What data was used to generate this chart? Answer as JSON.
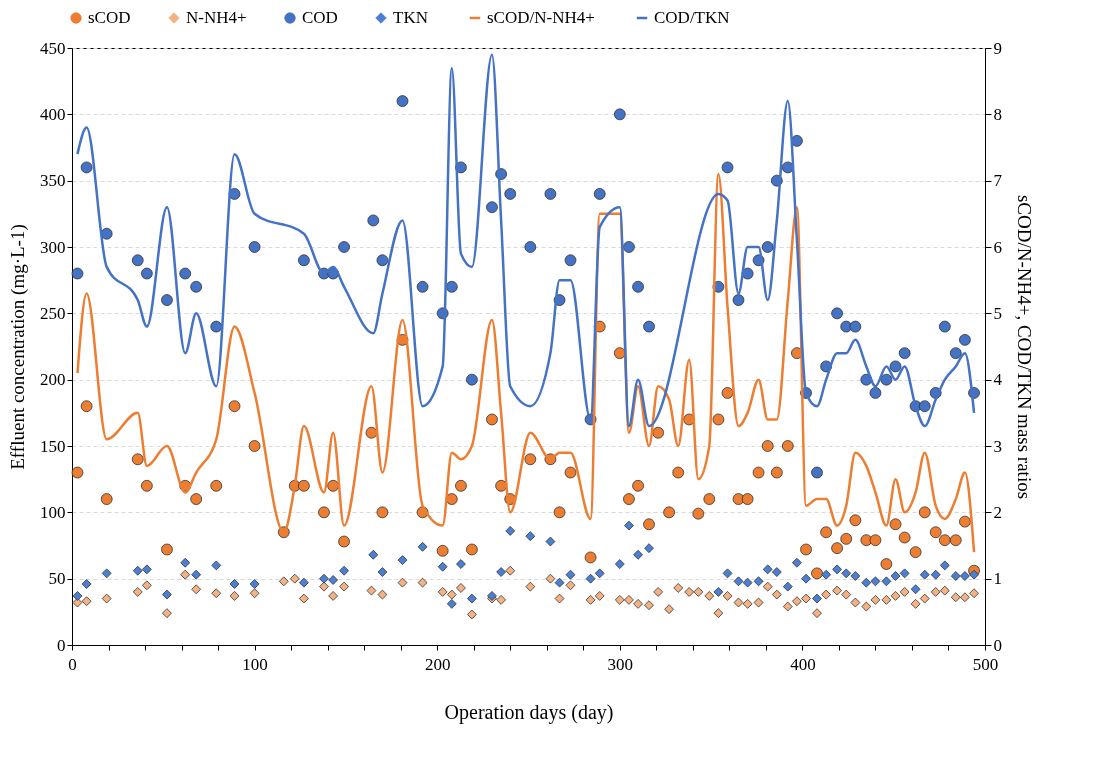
{
  "chart_data": {
    "type": "scatter",
    "xlabel": "Operation days (day)",
    "ylabel": "Effluent concentration (mg·L-1)",
    "y2label": "sCOD/N-NH4+, COD/TKN mass ratios",
    "xlim": [
      0,
      500
    ],
    "xticks": [
      0,
      {
        "value": 20,
        "label": null
      },
      {
        "value": 40,
        "label": null
      },
      {
        "value": 60,
        "label": null
      },
      {
        "value": 80,
        "label": null
      },
      100,
      {
        "value": 120,
        "label": null
      },
      {
        "value": 140,
        "label": null
      },
      {
        "value": 160,
        "label": null
      },
      {
        "value": 180,
        "label": null
      },
      200,
      {
        "value": 220,
        "label": null
      },
      {
        "value": 240,
        "label": null
      },
      {
        "value": 260,
        "label": null
      },
      {
        "value": 280,
        "label": null
      },
      300,
      {
        "value": 320,
        "label": null
      },
      {
        "value": 340,
        "label": null
      },
      {
        "value": 360,
        "label": null
      },
      {
        "value": 380,
        "label": null
      },
      400,
      {
        "value": 420,
        "label": null
      },
      {
        "value": 440,
        "label": null
      },
      {
        "value": 460,
        "label": null
      },
      {
        "value": 480,
        "label": null
      },
      500
    ],
    "ylim": [
      0,
      450
    ],
    "yticks": [
      0,
      50,
      100,
      150,
      200,
      250,
      300,
      350,
      400,
      450
    ],
    "y2lim": [
      0,
      9
    ],
    "y2ticks": [
      0,
      1,
      2,
      3,
      4,
      5,
      6,
      7,
      8,
      9
    ],
    "grid": "y",
    "legend": "top",
    "series": [
      {
        "name": "sCOD",
        "type": "scatter",
        "marker": "circle",
        "color": "#ed7d31",
        "x": [
          3,
          8,
          19,
          36,
          41,
          52,
          62,
          68,
          79,
          89,
          100,
          116,
          122,
          127,
          138,
          143,
          149,
          164,
          170,
          181,
          192,
          203,
          208,
          213,
          219,
          230,
          235,
          240,
          251,
          262,
          267,
          273,
          284,
          289,
          300,
          305,
          310,
          316,
          321,
          327,
          332,
          338,
          343,
          349,
          354,
          359,
          365,
          370,
          376,
          381,
          386,
          392,
          397,
          402,
          408,
          413,
          419,
          424,
          429,
          435,
          440,
          446,
          451,
          456,
          462,
          467,
          473,
          478,
          484,
          489,
          494
        ],
        "values": [
          130,
          180,
          110,
          140,
          120,
          72,
          120,
          110,
          120,
          180,
          150,
          85,
          120,
          120,
          100,
          120,
          78,
          160,
          100,
          230,
          100,
          71,
          110,
          120,
          72,
          170,
          120,
          110,
          140,
          140,
          100,
          130,
          66,
          240,
          220,
          110,
          120,
          91,
          160,
          100,
          130,
          170,
          99,
          110,
          170,
          190,
          110,
          110,
          130,
          150,
          130,
          150,
          220,
          72,
          54,
          85,
          73,
          80,
          94,
          79,
          79,
          61,
          91,
          81,
          70,
          100,
          85,
          79,
          79,
          93,
          56
        ]
      },
      {
        "name": "N-NH4+",
        "type": "scatter",
        "marker": "diamond",
        "color": "#f4b183",
        "x": [
          3,
          8,
          19,
          36,
          41,
          52,
          62,
          68,
          79,
          89,
          100,
          116,
          122,
          127,
          138,
          143,
          149,
          164,
          170,
          181,
          192,
          203,
          208,
          213,
          219,
          230,
          235,
          240,
          251,
          262,
          267,
          273,
          284,
          289,
          300,
          305,
          310,
          316,
          321,
          327,
          332,
          338,
          343,
          349,
          354,
          359,
          365,
          370,
          376,
          381,
          386,
          392,
          397,
          402,
          408,
          413,
          419,
          424,
          429,
          435,
          440,
          446,
          451,
          456,
          462,
          467,
          473,
          478,
          484,
          489,
          494
        ],
        "values": [
          32,
          33,
          35,
          40,
          45,
          24,
          53,
          42,
          39,
          37,
          39,
          48,
          50,
          35,
          44,
          37,
          44,
          41,
          38,
          47,
          47,
          40,
          38,
          43,
          23,
          35,
          34,
          56,
          44,
          50,
          35,
          45,
          34,
          37,
          34,
          34,
          31,
          30,
          40,
          27,
          43,
          40,
          40,
          37,
          24,
          37,
          32,
          31,
          32,
          44,
          38,
          29,
          33,
          35,
          24,
          38,
          41,
          38,
          32,
          29,
          34,
          34,
          37,
          40,
          31,
          35,
          40,
          41,
          36,
          36,
          39
        ]
      },
      {
        "name": "COD",
        "type": "scatter",
        "marker": "circle",
        "color": "#4472c4",
        "x": [
          3,
          8,
          19,
          36,
          41,
          52,
          62,
          68,
          79,
          89,
          100,
          127,
          138,
          143,
          149,
          165,
          170,
          181,
          192,
          203,
          208,
          213,
          219,
          230,
          235,
          240,
          251,
          262,
          267,
          273,
          284,
          289,
          300,
          305,
          310,
          316,
          354,
          359,
          365,
          370,
          376,
          381,
          386,
          392,
          397,
          402,
          408,
          413,
          419,
          424,
          429,
          435,
          440,
          446,
          451,
          456,
          462,
          467,
          473,
          478,
          484,
          489,
          494
        ],
        "values": [
          280,
          360,
          310,
          290,
          280,
          260,
          280,
          270,
          240,
          340,
          300,
          290,
          280,
          280,
          300,
          320,
          290,
          410,
          270,
          250,
          270,
          360,
          200,
          330,
          355,
          340,
          300,
          340,
          260,
          290,
          170,
          340,
          400,
          300,
          270,
          240,
          270,
          360,
          260,
          280,
          290,
          300,
          350,
          360,
          380,
          190,
          130,
          210,
          250,
          240,
          240,
          200,
          190,
          200,
          210,
          220,
          180,
          180,
          190,
          240,
          220,
          230,
          190
        ]
      },
      {
        "name": "TKN",
        "type": "scatter",
        "marker": "diamond",
        "color": "#4a7fd4",
        "x": [
          3,
          8,
          19,
          36,
          41,
          52,
          62,
          68,
          79,
          89,
          100,
          127,
          138,
          143,
          149,
          165,
          170,
          181,
          192,
          203,
          208,
          213,
          219,
          230,
          235,
          240,
          251,
          262,
          267,
          273,
          284,
          289,
          300,
          305,
          310,
          316,
          354,
          359,
          365,
          370,
          376,
          381,
          386,
          392,
          397,
          402,
          408,
          413,
          419,
          424,
          429,
          435,
          440,
          446,
          451,
          456,
          462,
          467,
          473,
          478,
          484,
          489,
          494
        ],
        "values": [
          37,
          46,
          54,
          56,
          57,
          38,
          62,
          53,
          60,
          46,
          46,
          47,
          50,
          49,
          56,
          68,
          55,
          64,
          74,
          59,
          31,
          61,
          35,
          37,
          55,
          86,
          82,
          78,
          47,
          53,
          50,
          54,
          61,
          90,
          68,
          73,
          40,
          54,
          48,
          47,
          48,
          57,
          55,
          44,
          62,
          50,
          35,
          53,
          57,
          54,
          52,
          47,
          48,
          48,
          52,
          54,
          42,
          53,
          53,
          60,
          52,
          52,
          53
        ]
      },
      {
        "name": "sCOD/N-NH4+",
        "type": "line",
        "axis": "y2",
        "color": "#ed7d31",
        "x": [
          3,
          8,
          19,
          36,
          41,
          52,
          62,
          68,
          79,
          89,
          100,
          116,
          122,
          127,
          138,
          143,
          149,
          164,
          170,
          181,
          192,
          203,
          208,
          213,
          219,
          230,
          235,
          240,
          251,
          262,
          267,
          273,
          284,
          289,
          300,
          305,
          310,
          316,
          321,
          327,
          332,
          338,
          343,
          349,
          354,
          359,
          365,
          370,
          376,
          381,
          386,
          392,
          397,
          402,
          408,
          413,
          419,
          424,
          429,
          435,
          440,
          446,
          451,
          456,
          462,
          467,
          473,
          478,
          484,
          489,
          494
        ],
        "values": [
          4.1,
          5.3,
          3.1,
          3.5,
          2.7,
          3.0,
          2.3,
          2.6,
          3.1,
          4.8,
          3.8,
          1.7,
          2.4,
          3.3,
          2.3,
          3.2,
          1.8,
          3.9,
          2.6,
          4.9,
          2.1,
          1.8,
          2.9,
          2.8,
          3.0,
          4.9,
          3.5,
          2.0,
          3.2,
          2.8,
          2.9,
          2.9,
          1.9,
          6.5,
          6.5,
          3.2,
          3.9,
          3.0,
          3.9,
          3.7,
          3.0,
          4.3,
          2.5,
          3.0,
          7.1,
          5.1,
          3.3,
          3.5,
          4.0,
          3.4,
          3.4,
          5.2,
          6.6,
          2.1,
          2.2,
          2.2,
          1.8,
          2.1,
          2.9,
          2.7,
          2.3,
          1.8,
          2.5,
          2.0,
          2.3,
          2.9,
          2.1,
          1.9,
          2.2,
          2.6,
          1.4
        ]
      },
      {
        "name": "COD/TKN",
        "type": "line",
        "axis": "y2",
        "color": "#4472c4",
        "x": [
          3,
          8,
          19,
          36,
          41,
          52,
          62,
          68,
          79,
          89,
          100,
          127,
          138,
          143,
          149,
          165,
          170,
          181,
          192,
          203,
          208,
          213,
          219,
          230,
          235,
          240,
          251,
          262,
          267,
          273,
          284,
          289,
          300,
          305,
          310,
          316,
          354,
          359,
          365,
          370,
          376,
          381,
          386,
          392,
          397,
          402,
          408,
          413,
          419,
          424,
          429,
          435,
          440,
          446,
          451,
          456,
          462,
          467,
          473,
          478,
          484,
          489,
          494
        ],
        "values": [
          7.4,
          7.8,
          5.7,
          5.2,
          4.8,
          6.6,
          4.4,
          5.0,
          3.9,
          7.4,
          6.5,
          6.2,
          5.6,
          5.7,
          5.4,
          4.7,
          5.3,
          6.4,
          3.6,
          4.2,
          8.7,
          5.9,
          5.7,
          8.9,
          6.4,
          3.9,
          3.6,
          4.4,
          5.5,
          5.5,
          3.4,
          6.3,
          6.6,
          3.3,
          4.0,
          3.3,
          6.8,
          6.7,
          5.3,
          6.0,
          6.0,
          5.2,
          6.4,
          8.2,
          6.1,
          3.8,
          3.6,
          4.0,
          4.4,
          4.4,
          4.6,
          4.2,
          3.9,
          4.2,
          4.0,
          4.2,
          3.6,
          3.3,
          3.7,
          4.0,
          4.2,
          4.4,
          3.5
        ]
      }
    ]
  }
}
